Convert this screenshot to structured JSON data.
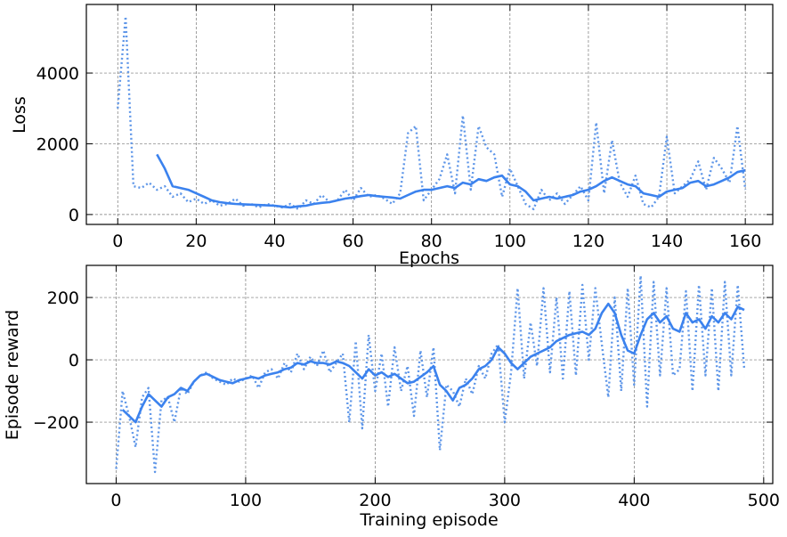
{
  "chart_data": [
    {
      "type": "line",
      "xlabel": "Epochs",
      "ylabel": "Loss",
      "xlim": [
        -8,
        167
      ],
      "ylim": [
        -280,
        5940
      ],
      "xticks": [
        0,
        20,
        40,
        60,
        80,
        100,
        120,
        140,
        160
      ],
      "yticks": [
        0,
        2000,
        4000
      ],
      "grid": true,
      "x": [
        0,
        2,
        4,
        6,
        8,
        10,
        12,
        14,
        16,
        18,
        20,
        22,
        24,
        26,
        28,
        30,
        32,
        34,
        36,
        38,
        40,
        42,
        44,
        46,
        48,
        50,
        52,
        54,
        56,
        58,
        60,
        62,
        64,
        66,
        68,
        70,
        72,
        74,
        76,
        78,
        80,
        82,
        84,
        86,
        88,
        90,
        92,
        94,
        96,
        98,
        100,
        102,
        104,
        106,
        108,
        110,
        112,
        114,
        116,
        118,
        120,
        122,
        124,
        126,
        128,
        130,
        132,
        134,
        136,
        138,
        140,
        142,
        144,
        146,
        148,
        150,
        152,
        154,
        156,
        158,
        160
      ],
      "series": [
        {
          "color": "#5e96e8",
          "style": "dotted",
          "values": [
            3000,
            5600,
            800,
            750,
            900,
            700,
            800,
            500,
            600,
            350,
            450,
            300,
            400,
            250,
            300,
            450,
            250,
            300,
            200,
            300,
            250,
            200,
            300,
            150,
            400,
            300,
            550,
            350,
            400,
            700,
            400,
            750,
            500,
            550,
            450,
            300,
            600,
            2300,
            2500,
            400,
            700,
            1000,
            1700,
            600,
            2800,
            700,
            2500,
            1900,
            1700,
            500,
            1300,
            800,
            300,
            150,
            700,
            400,
            600,
            300,
            550,
            800,
            400,
            2600,
            600,
            2100,
            900,
            500,
            1100,
            300,
            200,
            500,
            2200,
            600,
            800,
            1000,
            1500,
            700,
            1600,
            1300,
            900,
            2500,
            700
          ]
        },
        {
          "color": "#3b82ee",
          "style": "solid",
          "values": [
            null,
            null,
            null,
            null,
            null,
            1700,
            1300,
            800,
            750,
            700,
            600,
            500,
            400,
            350,
            320,
            300,
            290,
            280,
            270,
            260,
            250,
            220,
            200,
            230,
            250,
            300,
            330,
            350,
            400,
            450,
            480,
            520,
            550,
            520,
            500,
            480,
            450,
            550,
            650,
            700,
            700,
            750,
            800,
            750,
            900,
            850,
            1000,
            950,
            1050,
            1100,
            850,
            800,
            650,
            400,
            450,
            500,
            450,
            500,
            550,
            650,
            700,
            800,
            950,
            1050,
            950,
            850,
            800,
            600,
            550,
            500,
            650,
            700,
            750,
            900,
            950,
            800,
            850,
            950,
            1050,
            1200,
            1250
          ]
        }
      ]
    },
    {
      "type": "line",
      "xlabel": "Training episode",
      "ylabel": "Episode reward",
      "xlim": [
        -23,
        507
      ],
      "ylim": [
        -397,
        303
      ],
      "xticks": [
        0,
        100,
        200,
        300,
        400,
        500
      ],
      "yticks": [
        {
          "value": -200,
          "label": "−200"
        },
        0,
        200
      ],
      "grid": true,
      "x": [
        0,
        5,
        10,
        15,
        20,
        25,
        30,
        35,
        40,
        45,
        50,
        55,
        60,
        65,
        70,
        75,
        80,
        85,
        90,
        95,
        100,
        105,
        110,
        115,
        120,
        125,
        130,
        135,
        140,
        145,
        150,
        155,
        160,
        165,
        170,
        175,
        180,
        185,
        190,
        195,
        200,
        205,
        210,
        215,
        220,
        225,
        230,
        235,
        240,
        245,
        250,
        255,
        260,
        265,
        270,
        275,
        280,
        285,
        290,
        295,
        300,
        305,
        310,
        315,
        320,
        325,
        330,
        335,
        340,
        345,
        350,
        355,
        360,
        365,
        370,
        375,
        380,
        385,
        390,
        395,
        400,
        405,
        410,
        415,
        420,
        425,
        430,
        435,
        440,
        445,
        450,
        455,
        460,
        465,
        470,
        475,
        480,
        485
      ],
      "series": [
        {
          "color": "#5e96e8",
          "style": "dotted",
          "values": [
            -350,
            -100,
            -180,
            -280,
            -120,
            -90,
            -360,
            -130,
            -120,
            -200,
            -90,
            -110,
            -70,
            -50,
            -40,
            -60,
            -70,
            -80,
            -60,
            -70,
            -60,
            -50,
            -90,
            -40,
            -30,
            -60,
            -10,
            -40,
            20,
            -30,
            10,
            -20,
            30,
            -40,
            -10,
            20,
            -200,
            60,
            -220,
            80,
            -100,
            20,
            -150,
            40,
            -100,
            -20,
            -180,
            30,
            -120,
            40,
            -290,
            -80,
            -100,
            -150,
            -60,
            -110,
            -20,
            -60,
            20,
            50,
            -200,
            -40,
            230,
            -60,
            120,
            -20,
            230,
            -40,
            200,
            -60,
            220,
            -50,
            240,
            0,
            230,
            50,
            -120,
            200,
            -100,
            230,
            -80,
            270,
            -150,
            250,
            -50,
            230,
            -50,
            -30,
            220,
            -100,
            240,
            -50,
            230,
            -100,
            250,
            -50,
            240,
            -30
          ]
        },
        {
          "color": "#3b82ee",
          "style": "solid",
          "values": [
            null,
            -160,
            -180,
            -200,
            -150,
            -110,
            -130,
            -150,
            -120,
            -110,
            -90,
            -100,
            -70,
            -50,
            -45,
            -55,
            -65,
            -70,
            -75,
            -65,
            -60,
            -55,
            -60,
            -50,
            -45,
            -40,
            -30,
            -25,
            -10,
            -15,
            -5,
            -10,
            -10,
            -15,
            -5,
            -10,
            -20,
            -40,
            -60,
            -30,
            -50,
            -40,
            -55,
            -45,
            -60,
            -75,
            -70,
            -55,
            -40,
            -20,
            -80,
            -100,
            -130,
            -90,
            -80,
            -60,
            -30,
            -20,
            0,
            40,
            20,
            -10,
            -30,
            -10,
            10,
            20,
            30,
            40,
            60,
            70,
            80,
            85,
            90,
            80,
            100,
            150,
            180,
            150,
            80,
            30,
            20,
            80,
            130,
            150,
            120,
            140,
            100,
            90,
            150,
            120,
            130,
            100,
            140,
            120,
            150,
            130,
            170,
            160
          ]
        }
      ]
    }
  ]
}
